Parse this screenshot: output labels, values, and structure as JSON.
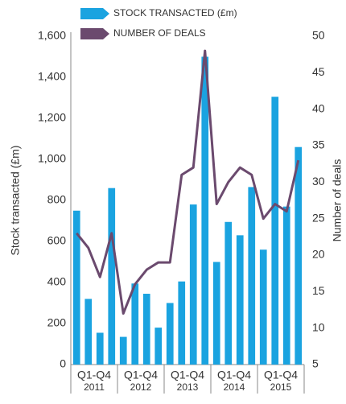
{
  "chart_data": {
    "type": "combo",
    "categories": [
      null,
      null,
      null,
      null,
      null,
      null,
      null,
      null,
      null,
      null,
      null,
      null,
      null,
      null,
      null,
      null,
      null,
      null,
      null,
      null
    ],
    "groups": [
      {
        "period": "Q1-Q4",
        "year": "2011"
      },
      {
        "period": "Q1-Q4",
        "year": "2012"
      },
      {
        "period": "Q1-Q4",
        "year": "2013"
      },
      {
        "period": "Q1-Q4",
        "year": "2014"
      },
      {
        "period": "Q1-Q4",
        "year": "2015"
      }
    ],
    "ylabel": "Stock transacted (£m)",
    "y2label": "Number of deals",
    "ylim": [
      0,
      1600
    ],
    "yticks": [
      0,
      200,
      400,
      600,
      800,
      {
        "value": 1000,
        "label": "1,000"
      },
      {
        "value": 1200,
        "label": "1,200"
      },
      {
        "value": 1400,
        "label": "1,400"
      },
      {
        "value": 1600,
        "label": "1,600"
      }
    ],
    "y2lim": [
      5,
      50
    ],
    "y2ticks": [
      5,
      10,
      15,
      20,
      25,
      30,
      35,
      40,
      45,
      50
    ],
    "series": [
      {
        "name": "STOCK TRANSACTED (£m)",
        "type": "bar",
        "color": "#1aa3e0",
        "values": [
          750,
          320,
          155,
          860,
          135,
          395,
          345,
          180,
          300,
          405,
          780,
          1500,
          500,
          695,
          630,
          865,
          560,
          1305,
          770,
          1060
        ]
      },
      {
        "name": "NUMBER OF DEALS",
        "type": "line",
        "axis": "y2",
        "color": "#6b4a6e",
        "values": [
          23,
          21,
          17,
          23,
          12,
          16,
          18,
          19,
          19,
          31,
          32,
          48,
          27,
          30,
          32,
          31,
          25,
          27,
          26,
          33
        ]
      }
    ]
  }
}
